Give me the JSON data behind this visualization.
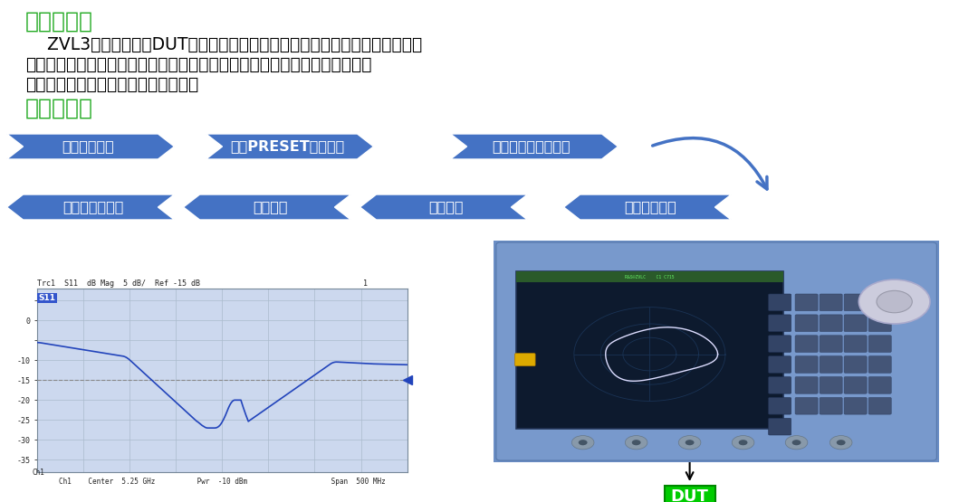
{
  "bg_color": "#ffffff",
  "green": "#22aa22",
  "arrow_blue": "#4472c4",
  "black": "#000000",
  "white": "#ffffff",
  "heading1": "反射测量：",
  "para_lines": [
    "    ZVL3向被测设备（DUT）的输入端口发射一个激励信号，并对反射波进行测",
    "量。通过众多轨迹格式来表示和显示结果，取决于要从这些数据获得的信息。",
    "进行反射测量只需使用一个测试端口。"
  ],
  "heading2": "测试步骤：",
  "row1_labels": [
    "连接被测器件",
    "进入PRESET出厂预设",
    "参数和扫描范围选择"
  ],
  "row2_labels": [
    "保存和打印数据",
    "数据分析",
    "数据分析",
    "仪器短路校准"
  ],
  "plot_header": "Trc1  S11  dB Mag  5 dB/  Ref -15 dB",
  "plot_num": "1",
  "plot_s11_label": "S11",
  "plot_xlabel": "Ch1    Center  5.25 GHz          Pwr  -10 dBm                    Span  500 MHz",
  "plot_bg": "#ccd8ee",
  "plot_grid": "#aabbcc",
  "plot_line": "#2244bb",
  "plot_ref_line": "#888888",
  "plot_yticks": [
    -35,
    -30,
    -25,
    -20,
    -15,
    -10,
    -5,
    0,
    5
  ],
  "plot_ytick_labels": [
    "-35",
    "-30",
    "-25",
    "-20",
    "-15",
    "-10",
    "",
    "0",
    ""
  ],
  "dut_bg": "#00cc00",
  "dut_text": "DUT",
  "inst_body": "#6688bb",
  "inst_screen": "#111133",
  "inst_screen_grid": "#223344",
  "inst_green_bar": "#225522"
}
